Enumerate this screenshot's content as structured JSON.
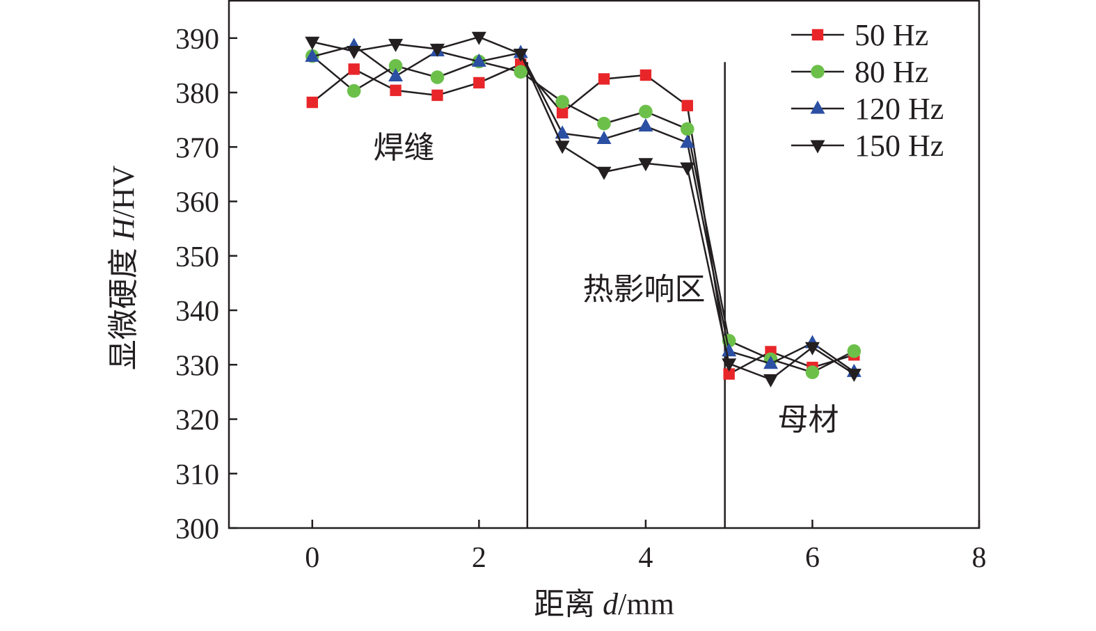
{
  "chart_data": {
    "type": "line",
    "x_axis": {
      "label_main": "距离 ",
      "label_var": "d",
      "label_unit": "/mm",
      "range": [
        -1,
        8
      ],
      "ticks": [
        0,
        2,
        4,
        6,
        8
      ]
    },
    "y_axis": {
      "label_main": "显微硬度 ",
      "label_var": "H",
      "label_unit": "/HV",
      "range": [
        300,
        397
      ],
      "ticks": [
        300,
        310,
        320,
        330,
        340,
        350,
        360,
        370,
        380,
        390
      ]
    },
    "x": [
      0,
      0.5,
      1,
      1.5,
      2,
      2.5,
      3,
      3.5,
      4,
      4.5,
      5,
      5.5,
      6,
      6.5
    ],
    "series": [
      {
        "name": "50 Hz",
        "marker": "square",
        "color": "#e8262a",
        "values": [
          378.2,
          384.3,
          380.4,
          379.5,
          381.8,
          385.2,
          376.3,
          382.5,
          383.2,
          377.6,
          328.3,
          332.4,
          329.5,
          331.8
        ]
      },
      {
        "name": "80 Hz",
        "marker": "circle",
        "color": "#6cc04a",
        "values": [
          386.7,
          380.3,
          384.9,
          382.8,
          385.7,
          383.8,
          378.3,
          374.3,
          376.5,
          373.3,
          334.4,
          331.0,
          328.6,
          332.5
        ]
      },
      {
        "name": "120 Hz",
        "marker": "triangle-up",
        "color": "#2b4fa3",
        "values": [
          386.6,
          388.6,
          383.0,
          387.6,
          385.7,
          387.3,
          372.5,
          371.5,
          373.8,
          370.8,
          332.5,
          330.2,
          334.0,
          328.7
        ]
      },
      {
        "name": "150 Hz",
        "marker": "triangle-down",
        "color": "#231f20",
        "values": [
          389.3,
          387.6,
          388.9,
          388.0,
          390.2,
          387.1,
          370.2,
          365.4,
          367.0,
          366.2,
          330.2,
          327.3,
          333.2,
          328.3
        ]
      }
    ],
    "dividers_x": [
      2.58,
      4.95
    ],
    "region_labels": [
      {
        "text": "焊缝",
        "x": 1.1,
        "y": 368
      },
      {
        "text": "热影响区",
        "x": 3.98,
        "y": 342
      },
      {
        "text": "母材",
        "x": 5.95,
        "y": 318
      }
    ],
    "legend_position": "top-right",
    "grid": false
  }
}
